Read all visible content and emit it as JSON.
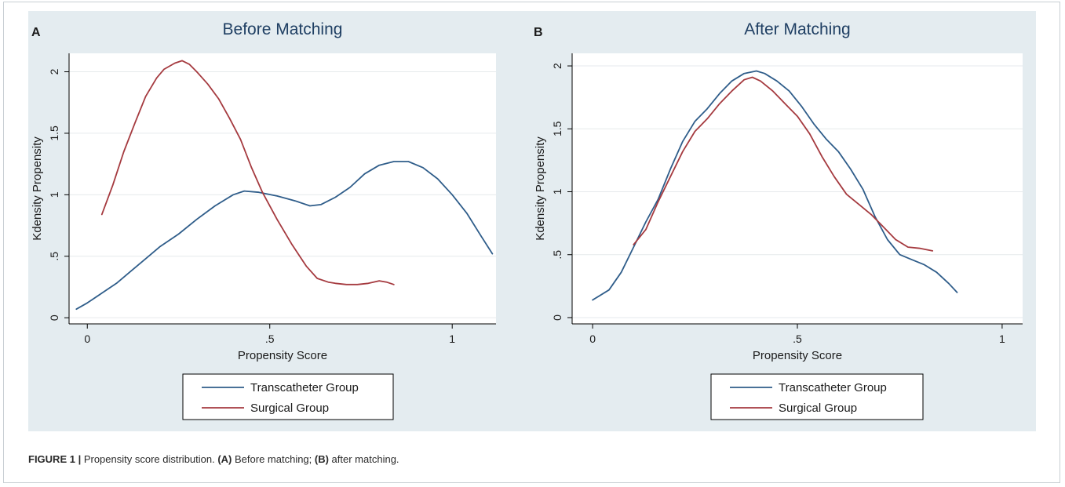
{
  "figure": {
    "caption_label": "FIGURE 1 |",
    "caption_text": " Propensity score distribution. ",
    "caption_a": "(A)",
    "caption_mid": " Before matching; ",
    "caption_b": "(B)",
    "caption_end": " after matching."
  },
  "colors": {
    "transcatheter": "#2f5d8a",
    "surgical": "#a53a3f",
    "background": "#e4ecf0",
    "plot_bg": "#ffffff",
    "title": "#1f3f63"
  },
  "chart_data": [
    {
      "type": "line",
      "panel_label": "A",
      "title": "Before Matching",
      "xlabel": "Propensity Score",
      "ylabel": "Kdensity Propensity",
      "xlim": [
        -0.05,
        1.12
      ],
      "ylim": [
        -0.05,
        2.15
      ],
      "xticks": [
        0,
        0.5,
        1
      ],
      "xtick_labels": [
        "0",
        ".5",
        "1"
      ],
      "yticks": [
        0,
        0.5,
        1,
        1.5,
        2
      ],
      "ytick_labels": [
        "0",
        ".5",
        "1",
        "1.5",
        "2"
      ],
      "grid": true,
      "legend": [
        "Transcatheter Group",
        "Surgical Group"
      ],
      "legend_position": "bottom",
      "series": [
        {
          "name": "Transcatheter Group",
          "x": [
            -0.03,
            0.0,
            0.04,
            0.08,
            0.12,
            0.16,
            0.2,
            0.25,
            0.3,
            0.35,
            0.4,
            0.43,
            0.47,
            0.52,
            0.57,
            0.61,
            0.64,
            0.68,
            0.72,
            0.76,
            0.8,
            0.84,
            0.88,
            0.92,
            0.96,
            1.0,
            1.04,
            1.08,
            1.11
          ],
          "y": [
            0.07,
            0.12,
            0.2,
            0.28,
            0.38,
            0.48,
            0.58,
            0.68,
            0.8,
            0.91,
            1.0,
            1.03,
            1.02,
            0.99,
            0.95,
            0.91,
            0.92,
            0.98,
            1.06,
            1.17,
            1.24,
            1.27,
            1.27,
            1.22,
            1.13,
            1.0,
            0.85,
            0.66,
            0.52
          ]
        },
        {
          "name": "Surgical Group",
          "x": [
            0.04,
            0.07,
            0.1,
            0.13,
            0.16,
            0.19,
            0.21,
            0.24,
            0.26,
            0.28,
            0.3,
            0.33,
            0.36,
            0.39,
            0.42,
            0.45,
            0.48,
            0.52,
            0.56,
            0.6,
            0.63,
            0.66,
            0.68,
            0.71,
            0.74,
            0.77,
            0.8,
            0.82,
            0.84
          ],
          "y": [
            0.84,
            1.08,
            1.35,
            1.58,
            1.8,
            1.95,
            2.02,
            2.07,
            2.09,
            2.06,
            2.0,
            1.9,
            1.78,
            1.62,
            1.45,
            1.22,
            1.02,
            0.8,
            0.6,
            0.42,
            0.32,
            0.29,
            0.28,
            0.27,
            0.27,
            0.28,
            0.3,
            0.29,
            0.27
          ]
        }
      ]
    },
    {
      "type": "line",
      "panel_label": "B",
      "title": "After Matching",
      "xlabel": "Propensity Score",
      "ylabel": "Kdensity Propensity",
      "xlim": [
        -0.05,
        1.05
      ],
      "ylim": [
        -0.05,
        2.1
      ],
      "xticks": [
        0,
        0.5,
        1
      ],
      "xtick_labels": [
        "0",
        ".5",
        "1"
      ],
      "yticks": [
        0,
        0.5,
        1,
        1.5,
        2
      ],
      "ytick_labels": [
        "0",
        ".5",
        "1",
        "1.5",
        "2"
      ],
      "grid": true,
      "legend": [
        "Transcatheter Group",
        "Surgical Group"
      ],
      "legend_position": "bottom",
      "series": [
        {
          "name": "Transcatheter Group",
          "x": [
            0.0,
            0.04,
            0.07,
            0.1,
            0.13,
            0.16,
            0.19,
            0.22,
            0.25,
            0.28,
            0.31,
            0.34,
            0.37,
            0.4,
            0.42,
            0.45,
            0.48,
            0.51,
            0.54,
            0.57,
            0.6,
            0.63,
            0.66,
            0.69,
            0.72,
            0.75,
            0.78,
            0.81,
            0.84,
            0.87,
            0.89
          ],
          "y": [
            0.14,
            0.22,
            0.36,
            0.56,
            0.76,
            0.94,
            1.18,
            1.4,
            1.56,
            1.66,
            1.78,
            1.88,
            1.94,
            1.96,
            1.94,
            1.88,
            1.8,
            1.68,
            1.54,
            1.42,
            1.32,
            1.18,
            1.02,
            0.8,
            0.62,
            0.5,
            0.46,
            0.42,
            0.36,
            0.27,
            0.2
          ]
        },
        {
          "name": "Surgical Group",
          "x": [
            0.1,
            0.13,
            0.16,
            0.19,
            0.22,
            0.25,
            0.28,
            0.31,
            0.34,
            0.37,
            0.39,
            0.41,
            0.44,
            0.47,
            0.5,
            0.53,
            0.56,
            0.59,
            0.62,
            0.65,
            0.68,
            0.71,
            0.74,
            0.77,
            0.8,
            0.83
          ],
          "y": [
            0.58,
            0.7,
            0.92,
            1.12,
            1.32,
            1.48,
            1.58,
            1.7,
            1.8,
            1.89,
            1.91,
            1.88,
            1.8,
            1.7,
            1.6,
            1.46,
            1.28,
            1.12,
            0.98,
            0.9,
            0.82,
            0.72,
            0.62,
            0.56,
            0.55,
            0.53
          ]
        }
      ]
    }
  ]
}
